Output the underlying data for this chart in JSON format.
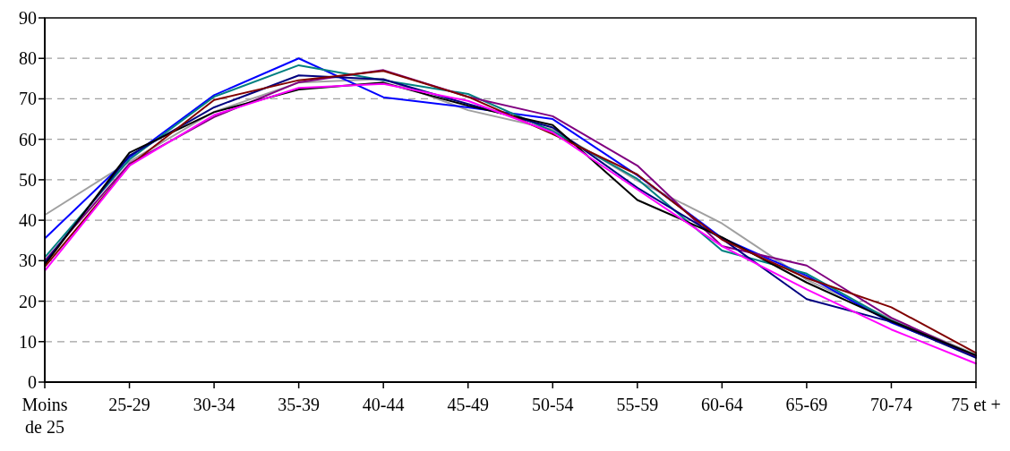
{
  "chart_data": {
    "type": "line",
    "categories": [
      "Moins de 25",
      "25-29",
      "30-34",
      "35-39",
      "40-44",
      "45-49",
      "50-54",
      "55-59",
      "60-64",
      "65-69",
      "70-74",
      "75 et +"
    ],
    "series": [
      {
        "color": "#a0a0a0",
        "values": [
          41.3,
          54.5,
          66.8,
          74,
          74.9,
          67.2,
          62.4,
          49.8,
          39.2,
          25.3,
          15.6,
          6.8
        ]
      },
      {
        "color": "#0000ff",
        "values": [
          35.5,
          55.5,
          70.9,
          80,
          70.4,
          67.9,
          65,
          51.1,
          35.6,
          26.3,
          14.7,
          6.4
        ]
      },
      {
        "color": "#008080",
        "values": [
          30.8,
          55,
          70.5,
          78.3,
          74.6,
          71.2,
          62,
          50.2,
          32.5,
          26.8,
          15.2,
          6.6
        ]
      },
      {
        "color": "#800080",
        "values": [
          30,
          54,
          65.5,
          74.1,
          77.1,
          70.5,
          65.7,
          53.5,
          33.6,
          28.8,
          15.9,
          6.3
        ]
      },
      {
        "color": "#000080",
        "values": [
          29.5,
          56,
          67.9,
          75.8,
          74.8,
          68.7,
          62.9,
          48,
          35.4,
          20.5,
          14.9,
          6
        ]
      },
      {
        "color": "#000000",
        "values": [
          29,
          56.7,
          66.7,
          72.3,
          74,
          68.3,
          63.5,
          45,
          35.8,
          24.6,
          15.1,
          6.6
        ]
      },
      {
        "color": "#800000",
        "values": [
          28.5,
          53.5,
          69.7,
          74.6,
          76.9,
          70.5,
          61.3,
          51.3,
          35.2,
          25.7,
          18.5,
          7.2
        ]
      },
      {
        "color": "#ff00ff",
        "values": [
          27.5,
          53.5,
          66,
          72.7,
          73.7,
          69.5,
          61.7,
          47.6,
          33.6,
          22.9,
          13,
          4.6
        ]
      }
    ],
    "ylim": [
      0,
      90
    ],
    "yticks": [
      0,
      10,
      20,
      30,
      40,
      50,
      60,
      70,
      80,
      90
    ],
    "grid": "y",
    "marker": "none",
    "line_style": "solid"
  }
}
